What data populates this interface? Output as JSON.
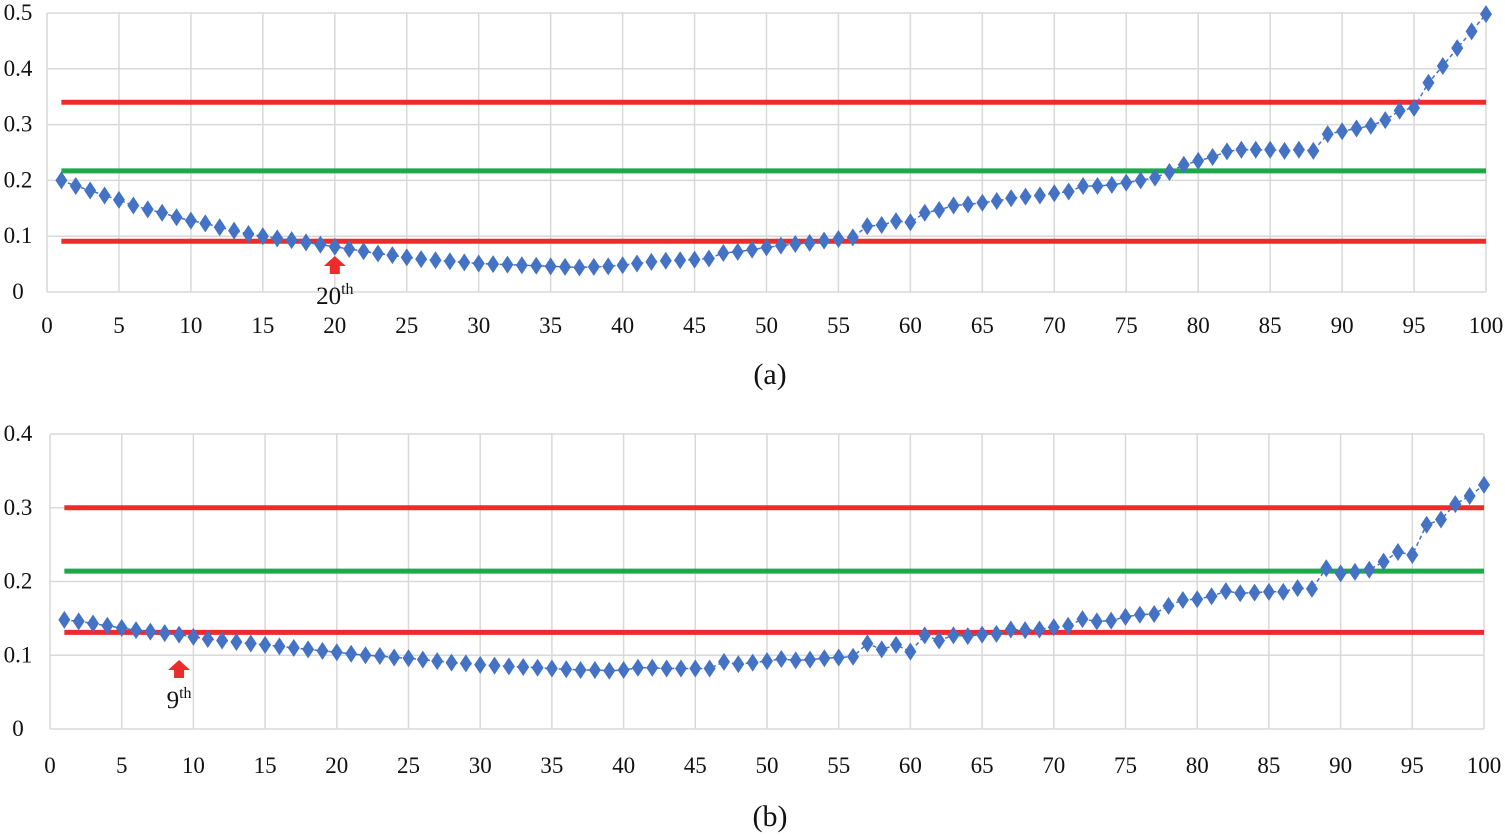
{
  "colors": {
    "series": "#4472c4",
    "limit": "#ee2a2a",
    "center": "#1ea84a",
    "grid": "#d9d9d9",
    "annotation": "#ee2a2a"
  },
  "chart_data": [
    {
      "type": "line",
      "caption": "(a)",
      "marker": "diamond",
      "line_style": "dashed",
      "grid": true,
      "xlim": [
        0,
        100
      ],
      "ylim": [
        0,
        0.5
      ],
      "xticks": [
        0,
        5,
        10,
        15,
        20,
        25,
        30,
        35,
        40,
        45,
        50,
        55,
        60,
        65,
        70,
        75,
        80,
        85,
        90,
        95,
        100
      ],
      "yticks": [
        0,
        0.1,
        0.2,
        0.3,
        0.4,
        0.5
      ],
      "reference_lines": [
        {
          "kind": "upper-limit",
          "y": 0.34,
          "color": "#ee2a2a"
        },
        {
          "kind": "center",
          "y": 0.217,
          "color": "#1ea84a"
        },
        {
          "kind": "lower-limit",
          "y": 0.091,
          "color": "#ee2a2a"
        }
      ],
      "annotation": {
        "x": 20,
        "label": "20",
        "suffix": "th"
      },
      "x": [
        1,
        2,
        3,
        4,
        5,
        6,
        7,
        8,
        9,
        10,
        11,
        12,
        13,
        14,
        15,
        16,
        17,
        18,
        19,
        20,
        21,
        22,
        23,
        24,
        25,
        26,
        27,
        28,
        29,
        30,
        31,
        32,
        33,
        34,
        35,
        36,
        37,
        38,
        39,
        40,
        41,
        42,
        43,
        44,
        45,
        46,
        47,
        48,
        49,
        50,
        51,
        52,
        53,
        54,
        55,
        56,
        57,
        58,
        59,
        60,
        61,
        62,
        63,
        64,
        65,
        66,
        67,
        68,
        69,
        70,
        71,
        72,
        73,
        74,
        75,
        76,
        77,
        78,
        79,
        80,
        81,
        82,
        83,
        84,
        85,
        86,
        87,
        88,
        89,
        90,
        91,
        92,
        93,
        94,
        95,
        96,
        97,
        98,
        99,
        100
      ],
      "values": [
        0.2,
        0.19,
        0.182,
        0.173,
        0.165,
        0.155,
        0.148,
        0.142,
        0.134,
        0.128,
        0.123,
        0.116,
        0.11,
        0.104,
        0.1,
        0.096,
        0.093,
        0.089,
        0.085,
        0.081,
        0.077,
        0.073,
        0.069,
        0.066,
        0.062,
        0.059,
        0.057,
        0.055,
        0.053,
        0.051,
        0.05,
        0.049,
        0.048,
        0.047,
        0.046,
        0.045,
        0.044,
        0.045,
        0.046,
        0.048,
        0.051,
        0.054,
        0.056,
        0.057,
        0.058,
        0.06,
        0.07,
        0.072,
        0.076,
        0.08,
        0.083,
        0.086,
        0.088,
        0.092,
        0.095,
        0.098,
        0.118,
        0.12,
        0.127,
        0.125,
        0.142,
        0.147,
        0.155,
        0.157,
        0.16,
        0.163,
        0.168,
        0.171,
        0.173,
        0.177,
        0.18,
        0.19,
        0.19,
        0.192,
        0.196,
        0.2,
        0.205,
        0.215,
        0.228,
        0.235,
        0.242,
        0.252,
        0.255,
        0.255,
        0.255,
        0.253,
        0.255,
        0.253,
        0.283,
        0.288,
        0.293,
        0.298,
        0.308,
        0.325,
        0.33,
        0.375,
        0.405,
        0.437,
        0.467,
        0.498
      ]
    },
    {
      "type": "line",
      "caption": "(b)",
      "marker": "diamond",
      "line_style": "dashed",
      "grid": true,
      "xlim": [
        0,
        100
      ],
      "ylim": [
        0,
        0.4
      ],
      "xticks": [
        0,
        5,
        10,
        15,
        20,
        25,
        30,
        35,
        40,
        45,
        50,
        55,
        60,
        65,
        70,
        75,
        80,
        85,
        90,
        95,
        100
      ],
      "yticks": [
        0,
        0.1,
        0.2,
        0.3,
        0.4
      ],
      "reference_lines": [
        {
          "kind": "upper-limit",
          "y": 0.3,
          "color": "#ee2a2a"
        },
        {
          "kind": "center",
          "y": 0.214,
          "color": "#1ea84a"
        },
        {
          "kind": "lower-limit",
          "y": 0.131,
          "color": "#ee2a2a"
        }
      ],
      "annotation": {
        "x": 9,
        "label": "9",
        "suffix": "th"
      },
      "x": [
        1,
        2,
        3,
        4,
        5,
        6,
        7,
        8,
        9,
        10,
        11,
        12,
        13,
        14,
        15,
        16,
        17,
        18,
        19,
        20,
        21,
        22,
        23,
        24,
        25,
        26,
        27,
        28,
        29,
        30,
        31,
        32,
        33,
        34,
        35,
        36,
        37,
        38,
        39,
        40,
        41,
        42,
        43,
        44,
        45,
        46,
        47,
        48,
        49,
        50,
        51,
        52,
        53,
        54,
        55,
        56,
        57,
        58,
        59,
        60,
        61,
        62,
        63,
        64,
        65,
        66,
        67,
        68,
        69,
        70,
        71,
        72,
        73,
        74,
        75,
        76,
        77,
        78,
        79,
        80,
        81,
        82,
        83,
        84,
        85,
        86,
        87,
        88,
        89,
        90,
        91,
        92,
        93,
        94,
        95,
        96,
        97,
        98,
        99,
        100
      ],
      "values": [
        0.148,
        0.146,
        0.143,
        0.14,
        0.137,
        0.134,
        0.132,
        0.13,
        0.128,
        0.125,
        0.122,
        0.12,
        0.118,
        0.116,
        0.114,
        0.112,
        0.11,
        0.108,
        0.106,
        0.104,
        0.102,
        0.1,
        0.099,
        0.097,
        0.096,
        0.094,
        0.092,
        0.09,
        0.089,
        0.087,
        0.086,
        0.085,
        0.084,
        0.083,
        0.082,
        0.081,
        0.08,
        0.08,
        0.079,
        0.08,
        0.083,
        0.083,
        0.082,
        0.082,
        0.082,
        0.082,
        0.091,
        0.088,
        0.09,
        0.092,
        0.095,
        0.093,
        0.094,
        0.096,
        0.097,
        0.098,
        0.116,
        0.108,
        0.114,
        0.105,
        0.127,
        0.12,
        0.127,
        0.126,
        0.128,
        0.129,
        0.135,
        0.134,
        0.135,
        0.138,
        0.14,
        0.149,
        0.146,
        0.147,
        0.152,
        0.155,
        0.156,
        0.167,
        0.175,
        0.176,
        0.18,
        0.187,
        0.184,
        0.185,
        0.186,
        0.186,
        0.191,
        0.19,
        0.218,
        0.211,
        0.213,
        0.216,
        0.227,
        0.24,
        0.236,
        0.277,
        0.284,
        0.305,
        0.316,
        0.331
      ]
    }
  ]
}
